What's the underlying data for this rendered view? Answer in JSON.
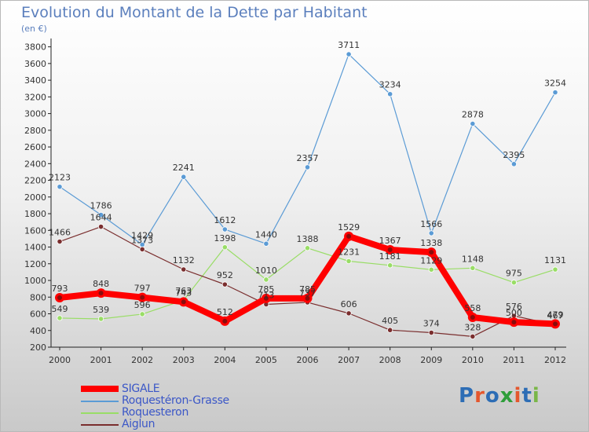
{
  "title": "Evolution du Montant de la Dette par Habitant",
  "unit_label": "(en €)",
  "brand": {
    "text": "Proxiti",
    "letter_colors": [
      "#2d6db5",
      "#e4572e",
      "#2d6db5",
      "#2e9e3a",
      "#e4572e",
      "#2d6db5",
      "#7ab648"
    ]
  },
  "chart_data": {
    "type": "line",
    "categories": [
      "2000",
      "2001",
      "2002",
      "2003",
      "2004",
      "2005",
      "2006",
      "2007",
      "2008",
      "2009",
      "2010",
      "2011",
      "2012"
    ],
    "yticks": [
      "200",
      "400",
      "600",
      "800",
      "1000",
      "1200",
      "1400",
      "1600",
      "1800",
      "2000",
      "2200",
      "2400",
      "2600",
      "2800",
      "3000",
      "3200",
      "3400",
      "3600",
      "3800"
    ],
    "ylim": [
      200,
      3900
    ],
    "xlabel": "",
    "ylabel": "",
    "grid": false,
    "legend_position": "bottom-left",
    "series": [
      {
        "name": "SIGALE",
        "color": "#ff0000",
        "values": [
          793,
          848,
          797,
          743,
          512,
          785,
          785,
          1529,
          1367,
          1338,
          558,
          500,
          479
        ],
        "labels": [
          "793",
          "848",
          "797",
          "743",
          "512",
          "785",
          "785",
          "1529",
          "1367",
          "1338",
          "558",
          "500",
          "479"
        ]
      },
      {
        "name": "Roquestéron-Grasse",
        "color": "#5b9bd5",
        "values": [
          2123,
          1786,
          1429,
          2241,
          1612,
          1440,
          2357,
          3711,
          3234,
          1566,
          2878,
          2395,
          3254
        ],
        "labels": [
          "2123",
          "1786",
          "1429",
          "2241",
          "1612",
          "1440",
          "2357",
          "3711",
          "3234",
          "1566",
          "2878",
          "2395",
          "3254"
        ]
      },
      {
        "name": "Roquesteron",
        "color": "#99dd66",
        "values": [
          549,
          539,
          596,
          763,
          1398,
          1010,
          1388,
          1231,
          1181,
          1129,
          1148,
          975,
          1131
        ],
        "labels": [
          "549",
          "539",
          "596",
          "763",
          "1398",
          "1010",
          "1388",
          "1231",
          "1181",
          "1129",
          "1148",
          "975",
          "1131"
        ]
      },
      {
        "name": "Aiglun",
        "color": "#7a2e2e",
        "values": [
          1466,
          1644,
          1373,
          1132,
          952,
          713,
          737,
          606,
          405,
          374,
          328,
          576,
          467
        ],
        "labels": [
          "1466",
          "1644",
          "1373",
          "1132",
          "952",
          "713",
          "737",
          "606",
          "405",
          "374",
          "328",
          "576",
          "467"
        ]
      }
    ]
  }
}
